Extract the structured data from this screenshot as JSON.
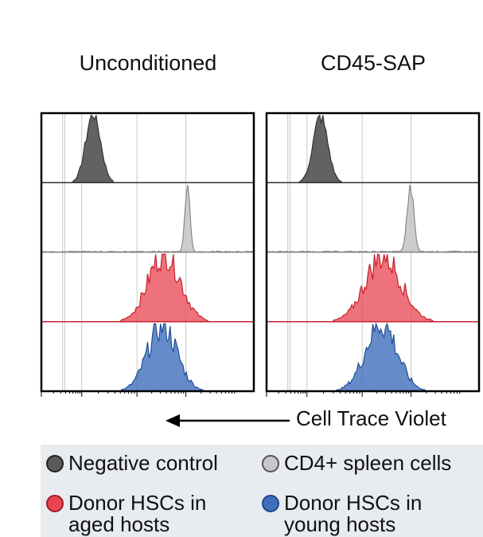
{
  "panels": [
    {
      "title": "Unconditioned"
    },
    {
      "title": "CD45-SAP"
    }
  ],
  "axis": {
    "label": "Cell Trace Violet",
    "arrow": "←"
  },
  "legend": [
    {
      "label": "Negative control",
      "color": "#5a5a5a"
    },
    {
      "label": "CD4+ spleen cells",
      "color": "#c8c8c8"
    },
    {
      "label": "Donor HSCs in aged hosts",
      "color": "#e8434f"
    },
    {
      "label": "Donor HSCs in young hosts",
      "color": "#3f6fba"
    }
  ],
  "chart_data": {
    "type": "area",
    "title": "",
    "xlabel": "Cell Trace Violet",
    "ylabel": "",
    "xscale": "log",
    "xlim": [
      0,
      10
    ],
    "grid": true,
    "panels": [
      "Unconditioned",
      "CD45-SAP"
    ],
    "series": [
      {
        "name": "Negative control",
        "color": "#5a5a5a",
        "peaks": [
          {
            "center": 2.4,
            "width": 0.35,
            "height": 0.95
          },
          {
            "center": 2.5,
            "width": 0.35,
            "height": 0.9
          }
        ]
      },
      {
        "name": "CD4+ spleen cells",
        "color": "#c8c8c8",
        "peaks": [
          {
            "center": 6.9,
            "width": 0.12,
            "height": 0.92
          },
          {
            "center": 6.8,
            "width": 0.16,
            "height": 0.88
          }
        ]
      },
      {
        "name": "Donor HSCs in aged hosts",
        "color": "#e8434f",
        "peaks": [
          {
            "center": 5.8,
            "width": 0.75,
            "height": 0.9
          },
          {
            "center": 5.5,
            "width": 0.85,
            "height": 0.85
          }
        ]
      },
      {
        "name": "Donor HSCs in young hosts",
        "color": "#3f6fba",
        "peaks": [
          {
            "center": 5.7,
            "width": 0.7,
            "height": 0.85
          },
          {
            "center": 5.4,
            "width": 0.75,
            "height": 0.88
          }
        ]
      }
    ]
  }
}
